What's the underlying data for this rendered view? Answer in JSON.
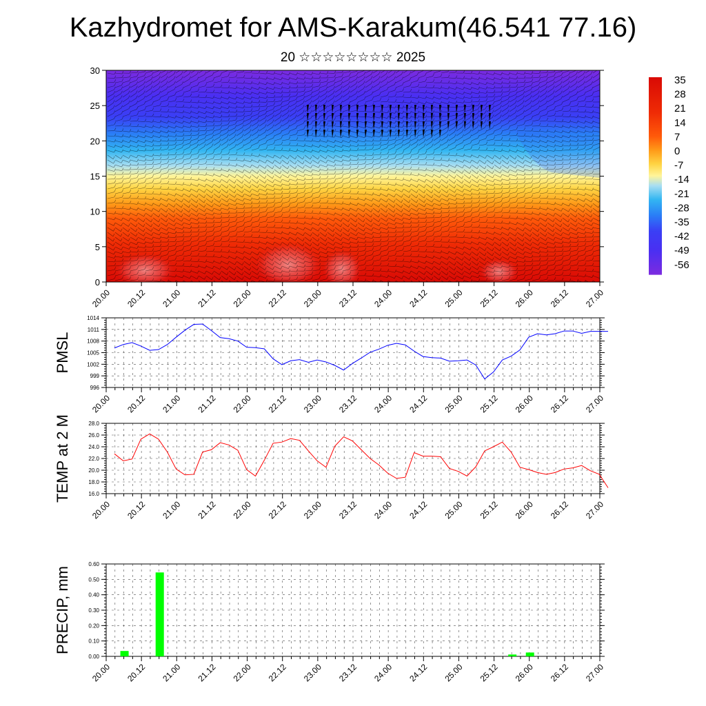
{
  "title": "Kazhydromet for AMS-Karakum(46.541 77.16)",
  "subtitle": "20 ☆☆☆☆☆☆☆☆ 2025",
  "chart_data": [
    {
      "type": "heatmap",
      "name": "cross-section",
      "description_fields": "temperature shaded with wind barbs overlaid",
      "x_ticks": [
        "20.00",
        "20.12",
        "21.00",
        "21.12",
        "22.00",
        "22.12",
        "23.00",
        "23.12",
        "24.00",
        "24.12",
        "25.00",
        "25.12",
        "26.00",
        "26.12",
        "27.00"
      ],
      "y_ticks": [
        0,
        5,
        10,
        15,
        20,
        25,
        30
      ],
      "ylim": [
        0,
        30
      ],
      "colorbar_labels": [
        "35",
        "28",
        "21",
        "14",
        "7",
        "0",
        "-7",
        "-14",
        "-21",
        "-28",
        "-35",
        "-42",
        "-49",
        "-56"
      ],
      "colorbar_range": [
        -60,
        40
      ],
      "colors": [
        "#7b2be0",
        "#5a2ef0",
        "#3a3ff5",
        "#2f63f7",
        "#2a8ef6",
        "#33b6f2",
        "#8fd3f2",
        "#fff26e",
        "#ffd443",
        "#ffa21c",
        "#ff6a0b",
        "#ef2b05",
        "#d90a05",
        "#ea7a78"
      ],
      "temperature_profile": [
        {
          "height": 0,
          "value": 22
        },
        {
          "height": 7,
          "value": 15
        },
        {
          "height": 12,
          "value": 0
        },
        {
          "height": 15.5,
          "value": -10
        },
        {
          "height": 18,
          "value": -25
        },
        {
          "height": 21,
          "value": -40
        },
        {
          "height": 24,
          "value": -50
        },
        {
          "height": 27,
          "value": -54
        },
        {
          "height": 30,
          "value": -58
        }
      ]
    },
    {
      "type": "line",
      "name": "PMSL",
      "ylabel": "PMSL",
      "y_ticks": [
        996,
        999,
        1002,
        1005,
        1008,
        1011,
        1014
      ],
      "ylim": [
        996,
        1014
      ],
      "x_ticks": [
        "20.00",
        "20.12",
        "21.00",
        "21.12",
        "22.00",
        "22.12",
        "23.00",
        "23.12",
        "24.00",
        "24.12",
        "25.00",
        "25.12",
        "26.00",
        "26.12",
        "27.00"
      ],
      "color": "#0000ff",
      "x": [
        0,
        0.125,
        0.25,
        0.375,
        0.5,
        0.625,
        0.75,
        0.875,
        1.0,
        1.125,
        1.25,
        1.375,
        1.5,
        1.625,
        1.75,
        1.875,
        2.0,
        2.125,
        2.25,
        2.375,
        2.5,
        2.625,
        2.75,
        2.875,
        3.0,
        3.125,
        3.25,
        3.375,
        3.5,
        3.625,
        3.75,
        3.875,
        4.0,
        4.125,
        4.25,
        4.375,
        4.5,
        4.625,
        4.75,
        4.875,
        5.0,
        5.125,
        5.25,
        5.375,
        5.5,
        5.625,
        5.75,
        5.875,
        6.0,
        6.125,
        6.25,
        6.375,
        6.5,
        6.625,
        6.75,
        6.875,
        7.0
      ],
      "values": [
        1006.2,
        1007.1,
        1007.6,
        1006.7,
        1005.6,
        1005.8,
        1007.1,
        1009.0,
        1010.8,
        1012.3,
        1012.4,
        1010.7,
        1008.9,
        1008.6,
        1008.0,
        1006.4,
        1006.3,
        1006.0,
        1003.4,
        1001.9,
        1002.9,
        1003.2,
        1002.5,
        1003.1,
        1002.6,
        1001.7,
        1000.5,
        1002.2,
        1003.6,
        1005.1,
        1005.9,
        1006.9,
        1007.4,
        1007.0,
        1005.4,
        1004.0,
        1003.7,
        1003.6,
        1002.8,
        1002.9,
        1003.1,
        1001.8,
        998.2,
        1000.0,
        1003.1,
        1004.1,
        1005.7,
        1009.0,
        1009.9,
        1009.6,
        1009.9,
        1010.6,
        1010.6,
        1010.0,
        1010.5,
        1010.5,
        1010.5
      ]
    },
    {
      "type": "line",
      "name": "TEMP at 2 M",
      "ylabel": "TEMP at 2 M",
      "y_ticks": [
        "16.0",
        "18.0",
        "20.0",
        "22.0",
        "24.0",
        "26.0",
        "28.0"
      ],
      "ylim": [
        16,
        28
      ],
      "x_ticks": [
        "20.00",
        "20.12",
        "21.00",
        "21.12",
        "22.00",
        "22.12",
        "23.00",
        "23.12",
        "24.00",
        "24.12",
        "25.00",
        "25.12",
        "26.00",
        "26.12",
        "27.00"
      ],
      "color": "#ff0000",
      "x": [
        0,
        0.125,
        0.25,
        0.375,
        0.5,
        0.625,
        0.75,
        0.875,
        1.0,
        1.125,
        1.25,
        1.375,
        1.5,
        1.625,
        1.75,
        1.875,
        2.0,
        2.125,
        2.25,
        2.375,
        2.5,
        2.625,
        2.75,
        2.875,
        3.0,
        3.125,
        3.25,
        3.375,
        3.5,
        3.625,
        3.75,
        3.875,
        4.0,
        4.125,
        4.25,
        4.375,
        4.5,
        4.625,
        4.75,
        4.875,
        5.0,
        5.125,
        5.25,
        5.375,
        5.5,
        5.625,
        5.75,
        5.875,
        6.0,
        6.125,
        6.25,
        6.375,
        6.5,
        6.625,
        6.75,
        6.875,
        7.0
      ],
      "values": [
        22.8,
        21.6,
        21.9,
        25.3,
        26.2,
        25.3,
        23.1,
        20.2,
        19.2,
        19.3,
        23.1,
        23.5,
        24.7,
        24.3,
        23.4,
        20.1,
        19.0,
        21.7,
        24.6,
        24.8,
        25.4,
        25.1,
        23.3,
        21.6,
        20.5,
        24.1,
        25.7,
        25.0,
        23.5,
        22.0,
        20.9,
        19.5,
        18.6,
        18.8,
        23.0,
        22.4,
        22.4,
        22.3,
        20.3,
        19.8,
        19.0,
        20.6,
        23.3,
        24.0,
        24.8,
        23.1,
        20.5,
        20.1,
        19.6,
        19.3,
        19.6,
        20.2,
        20.4,
        20.8,
        19.9,
        19.3,
        17.0
      ]
    },
    {
      "type": "bar",
      "name": "PRECIP",
      "ylabel": "PRECIP, mm",
      "y_ticks": [
        "0.00",
        "0.10",
        "0.20",
        "0.30",
        "0.40",
        "0.50",
        "0.60"
      ],
      "ylim": [
        0,
        0.6
      ],
      "x_ticks": [
        "20.00",
        "20.12",
        "21.00",
        "21.12",
        "22.00",
        "22.12",
        "23.00",
        "23.12",
        "24.00",
        "24.12",
        "25.00",
        "25.12",
        "26.00",
        "26.12",
        "27.00"
      ],
      "color": "#00ff00",
      "x": [
        0.25,
        0.75,
        5.75,
        6.0
      ],
      "values": [
        0.035,
        0.545,
        0.012,
        0.025
      ]
    }
  ]
}
